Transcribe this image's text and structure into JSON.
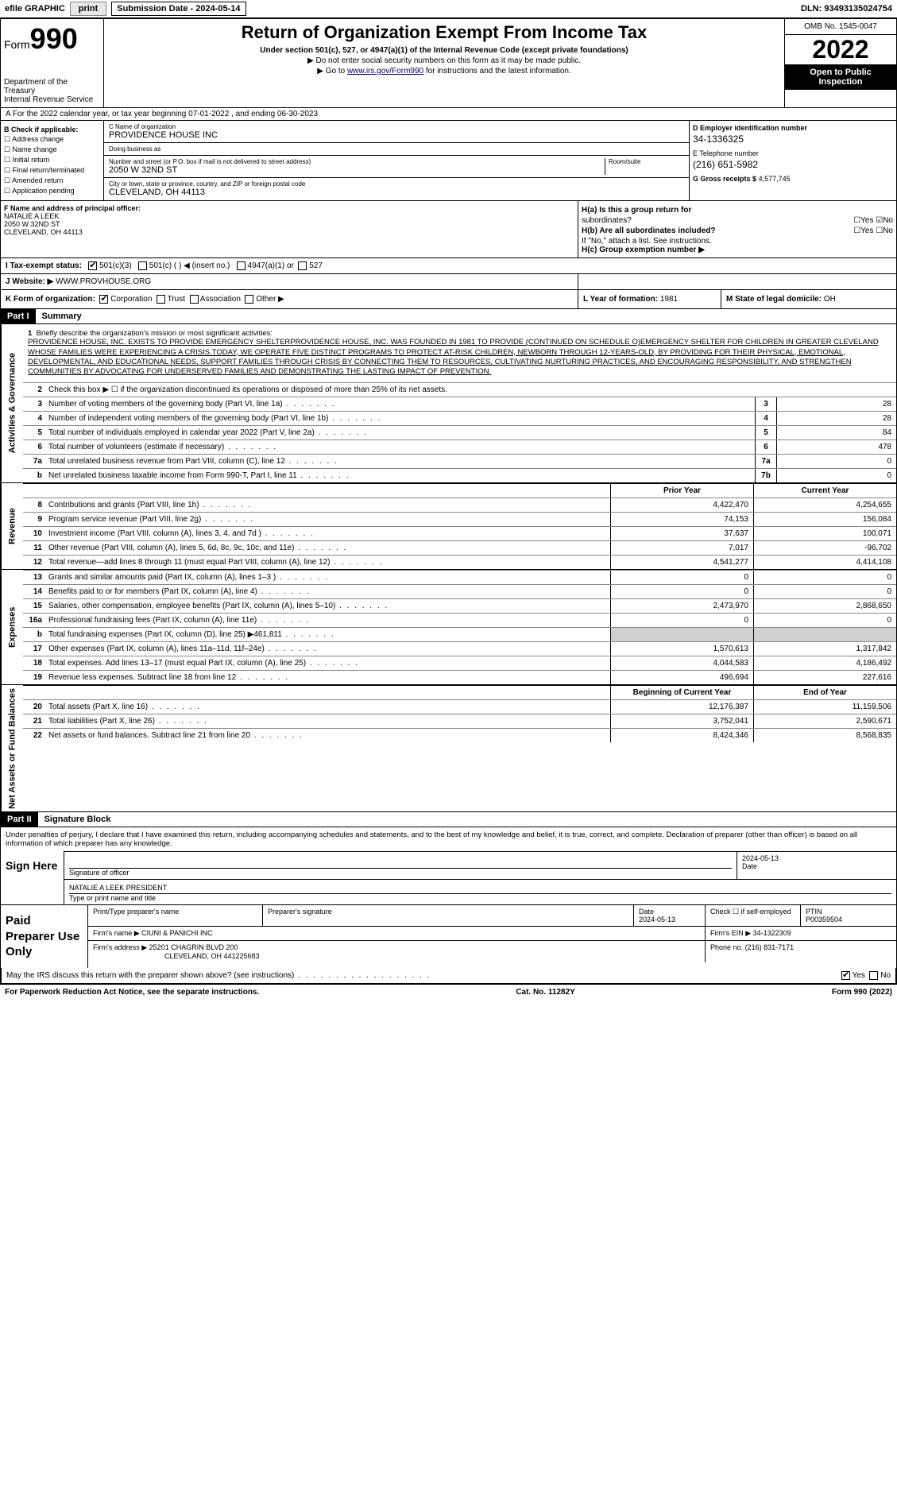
{
  "topbar": {
    "efile_label": "efile GRAPHIC",
    "print_btn": "print",
    "sub_date_label": "Submission Date - 2024-05-14",
    "dln": "DLN: 93493135024754"
  },
  "header": {
    "form_prefix": "Form",
    "form_num": "990",
    "dept": "Department of the Treasury",
    "irs": "Internal Revenue Service",
    "title": "Return of Organization Exempt From Income Tax",
    "subtitle": "Under section 501(c), 527, or 4947(a)(1) of the Internal Revenue Code (except private foundations)",
    "note1": "▶ Do not enter social security numbers on this form as it may be made public.",
    "note2_pre": "▶ Go to ",
    "note2_link": "www.irs.gov/Form990",
    "note2_post": " for instructions and the latest information.",
    "omb": "OMB No. 1545-0047",
    "year": "2022",
    "open": "Open to Public Inspection"
  },
  "section_a": "A For the 2022 calendar year, or tax year beginning 07-01-2022  , and ending 06-30-2023",
  "col_b": {
    "title": "B Check if applicable:",
    "items": [
      "Address change",
      "Name change",
      "Initial return",
      "Final return/terminated",
      "Amended return",
      "Application pending"
    ]
  },
  "col_c": {
    "name_label": "C Name of organization",
    "name": "PROVIDENCE HOUSE INC",
    "dba_label": "Doing business as",
    "dba": "",
    "addr_label": "Number and street (or P.O. box if mail is not delivered to street address)",
    "addr": "2050 W 32ND ST",
    "suite_label": "Room/suite",
    "city_label": "City or town, state or province, country, and ZIP or foreign postal code",
    "city": "CLEVELAND, OH  44113"
  },
  "col_d": {
    "ein_label": "D Employer identification number",
    "ein": "34-1336325",
    "phone_label": "E Telephone number",
    "phone": "(216) 651-5982",
    "gross_label": "G Gross receipts $",
    "gross": "4,577,745"
  },
  "row_f": {
    "label": "F  Name and address of principal officer:",
    "name": "NATALIE A LEEK",
    "addr1": "2050 W 32ND ST",
    "addr2": "CLEVELAND, OH  44113"
  },
  "row_h": {
    "ha_label": "H(a)  Is this a group return for",
    "ha_sub": "subordinates?",
    "hb_label": "H(b)  Are all subordinates included?",
    "hb_note": "If \"No,\" attach a list. See instructions.",
    "hc_label": "H(c)  Group exemption number ▶"
  },
  "row_i": {
    "label": "I   Tax-exempt status:",
    "opt1": "501(c)(3)",
    "opt2": "501(c) (  ) ◀ (insert no.)",
    "opt3": "4947(a)(1) or",
    "opt4": "527"
  },
  "row_j": {
    "label": "J   Website: ▶",
    "val": "WWW.PROVHOUSE.ORG"
  },
  "row_k": {
    "label": "K Form of organization:",
    "corp": "Corporation",
    "trust": "Trust",
    "assoc": "Association",
    "other": "Other ▶",
    "l_label": "L Year of formation:",
    "l_val": "1981",
    "m_label": "M State of legal domicile:",
    "m_val": "OH"
  },
  "part1": {
    "header": "Part I",
    "title": "Summary"
  },
  "mission": {
    "num": "1",
    "label": "Briefly describe the organization's mission or most significant activities:",
    "text": "PROVIDENCE HOUSE, INC. EXISTS TO PROVIDE EMERGENCY SHELTERPROVIDENCE HOUSE, INC. WAS FOUNDED IN 1981 TO PROVIDE (CONTINUED ON SCHEDULE O)EMERGENCY SHELTER FOR CHILDREN IN GREATER CLEVELAND WHOSE FAMILIES WERE EXPERIENCING A CRISIS.TODAY, WE OPERATE FIVE DISTINCT PROGRAMS TO PROTECT AT-RISK CHILDREN, NEWBORN THROUGH 12-YEARS-OLD, BY PROVIDING FOR THEIR PHYSICAL, EMOTIONAL, DEVELOPMENTAL, AND EDUCATIONAL NEEDS, SUPPORT FAMILIES THROUGH CRISIS BY CONNECTING THEM TO RESOURCES, CULTIVATING NURTURING PRACTICES, AND ENCOURAGING RESPONSIBILITY, AND STRENGTHEN COMMUNITIES BY ADVOCATING FOR UNDERSERVED FAMILIES AND DEMONSTRATING THE LASTING IMPACT OF PREVENTION."
  },
  "gov_lines": [
    {
      "n": "2",
      "d": "Check this box ▶ ☐  if the organization discontinued its operations or disposed of more than 25% of its net assets."
    },
    {
      "n": "3",
      "d": "Number of voting members of the governing body (Part VI, line 1a)",
      "box": "3",
      "v": "28"
    },
    {
      "n": "4",
      "d": "Number of independent voting members of the governing body (Part VI, line 1b)",
      "box": "4",
      "v": "28"
    },
    {
      "n": "5",
      "d": "Total number of individuals employed in calendar year 2022 (Part V, line 2a)",
      "box": "5",
      "v": "84"
    },
    {
      "n": "6",
      "d": "Total number of volunteers (estimate if necessary)",
      "box": "6",
      "v": "478"
    },
    {
      "n": "7a",
      "d": "Total unrelated business revenue from Part VIII, column (C), line 12",
      "box": "7a",
      "v": "0"
    },
    {
      "n": "b",
      "d": "Net unrelated business taxable income from Form 990-T, Part I, line 11",
      "box": "7b",
      "v": "0"
    }
  ],
  "col_headers": {
    "prior": "Prior Year",
    "curr": "Current Year"
  },
  "revenue": [
    {
      "n": "8",
      "d": "Contributions and grants (Part VIII, line 1h)",
      "p": "4,422,470",
      "c": "4,254,655"
    },
    {
      "n": "9",
      "d": "Program service revenue (Part VIII, line 2g)",
      "p": "74,153",
      "c": "156,084"
    },
    {
      "n": "10",
      "d": "Investment income (Part VIII, column (A), lines 3, 4, and 7d )",
      "p": "37,637",
      "c": "100,071"
    },
    {
      "n": "11",
      "d": "Other revenue (Part VIII, column (A), lines 5, 6d, 8c, 9c, 10c, and 11e)",
      "p": "7,017",
      "c": "-96,702"
    },
    {
      "n": "12",
      "d": "Total revenue—add lines 8 through 11 (must equal Part VIII, column (A), line 12)",
      "p": "4,541,277",
      "c": "4,414,108"
    }
  ],
  "expenses": [
    {
      "n": "13",
      "d": "Grants and similar amounts paid (Part IX, column (A), lines 1–3 )",
      "p": "0",
      "c": "0"
    },
    {
      "n": "14",
      "d": "Benefits paid to or for members (Part IX, column (A), line 4)",
      "p": "0",
      "c": "0"
    },
    {
      "n": "15",
      "d": "Salaries, other compensation, employee benefits (Part IX, column (A), lines 5–10)",
      "p": "2,473,970",
      "c": "2,868,650"
    },
    {
      "n": "16a",
      "d": "Professional fundraising fees (Part IX, column (A), line 11e)",
      "p": "0",
      "c": "0"
    },
    {
      "n": "b",
      "d": "Total fundraising expenses (Part IX, column (D), line 25) ▶461,811",
      "p": "",
      "c": "",
      "shaded": true
    },
    {
      "n": "17",
      "d": "Other expenses (Part IX, column (A), lines 11a–11d, 11f–24e)",
      "p": "1,570,613",
      "c": "1,317,842"
    },
    {
      "n": "18",
      "d": "Total expenses. Add lines 13–17 (must equal Part IX, column (A), line 25)",
      "p": "4,044,583",
      "c": "4,186,492"
    },
    {
      "n": "19",
      "d": "Revenue less expenses. Subtract line 18 from line 12",
      "p": "496,694",
      "c": "227,616"
    }
  ],
  "net_headers": {
    "beg": "Beginning of Current Year",
    "end": "End of Year"
  },
  "netassets": [
    {
      "n": "20",
      "d": "Total assets (Part X, line 16)",
      "p": "12,176,387",
      "c": "11,159,506"
    },
    {
      "n": "21",
      "d": "Total liabilities (Part X, line 26)",
      "p": "3,752,041",
      "c": "2,590,671"
    },
    {
      "n": "22",
      "d": "Net assets or fund balances. Subtract line 21 from line 20",
      "p": "8,424,346",
      "c": "8,568,835"
    }
  ],
  "side_labels": {
    "gov": "Activities & Governance",
    "rev": "Revenue",
    "exp": "Expenses",
    "net": "Net Assets or Fund Balances"
  },
  "part2": {
    "header": "Part II",
    "title": "Signature Block"
  },
  "sig": {
    "penalty": "Under penalties of perjury, I declare that I have examined this return, including accompanying schedules and statements, and to the best of my knowledge and belief, it is true, correct, and complete. Declaration of preparer (other than officer) is based on all information of which preparer has any knowledge.",
    "sign_here": "Sign Here",
    "sig_officer": "Signature of officer",
    "date_label": "Date",
    "date_val": "2024-05-13",
    "name_title": "NATALIE A LEEK  PRESIDENT",
    "type_label": "Type or print name and title"
  },
  "paid": {
    "label": "Paid Preparer Use Only",
    "print_label": "Print/Type preparer's name",
    "prep_sig": "Preparer's signature",
    "date_label": "Date",
    "date_val": "2024-05-13",
    "check_label": "Check ☐ if self-employed",
    "ptin_label": "PTIN",
    "ptin": "P00359504",
    "firm_name_label": "Firm's name   ▶",
    "firm_name": "CIUNI & PANICHI INC",
    "firm_ein_label": "Firm's EIN ▶",
    "firm_ein": "34-1322309",
    "firm_addr_label": "Firm's address ▶",
    "firm_addr1": "25201 CHAGRIN BLVD 200",
    "firm_addr2": "CLEVELAND, OH  441225683",
    "phone_label": "Phone no.",
    "phone": "(216) 831-7171"
  },
  "footer": {
    "discuss": "May the IRS discuss this return with the preparer shown above? (see instructions)",
    "paperwork": "For Paperwork Reduction Act Notice, see the separate instructions.",
    "cat": "Cat. No. 11282Y",
    "form": "Form 990 (2022)"
  }
}
